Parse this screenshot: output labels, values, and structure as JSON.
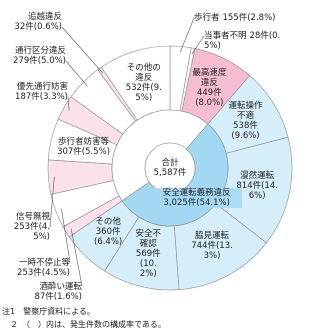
{
  "chart_data": {
    "type": "donut",
    "total": {
      "label": "合計",
      "value": 5587,
      "value_label": "5,587件"
    },
    "categories": [
      "歩行者",
      "当事者不明",
      "最高速度違反",
      "運転操作不適",
      "漫然運転",
      "脇見運転",
      "安全不確認",
      "その他",
      "酒酔い運転",
      "一時不停止等",
      "信号無視",
      "歩行者妨害等",
      "優先通行妨害",
      "通行区分違反",
      "追越違反",
      "その他の違反"
    ],
    "values": [
      155,
      28,
      449,
      538,
      814,
      744,
      569,
      360,
      87,
      253,
      253,
      307,
      187,
      279,
      32,
      532
    ],
    "value_labels": [
      "155件(2.8%)",
      "28件(0.5%)",
      "449件(8.0%)",
      "538件(9.6%)",
      "814件(14.6%)",
      "744件(13.3%)",
      "569件(10.2%)",
      "360件(6.4%)",
      "87件(1.6%)",
      "253件(4.5%)",
      "253件(4.5%)",
      "307件(5.5%)",
      "187件(3.3%)",
      "279件(5.0%)",
      "32件(0.6%)",
      "532件(9.5%)"
    ],
    "colors": [
      "#ffffff",
      "#ffffff",
      "#f6bcd1",
      "#d6eefa",
      "#d6eefa",
      "#d6eefa",
      "#d6eefa",
      "#d6eefa",
      "#fbe1eb",
      "#ffffff",
      "#fbe1eb",
      "#ffffff",
      "#fbe1eb",
      "#ffffff",
      "#fbe1eb",
      "#ffffff"
    ],
    "inner": {
      "name": "安全運転義務違反",
      "value": 3025,
      "value_label": "3,025件(54.1%)",
      "color": "#a3d8f3",
      "from": 3,
      "to": 7
    },
    "notes": [
      "注1　警察庁資料による。",
      "　２　（　）内は、発生件数の構成率である。"
    ]
  }
}
